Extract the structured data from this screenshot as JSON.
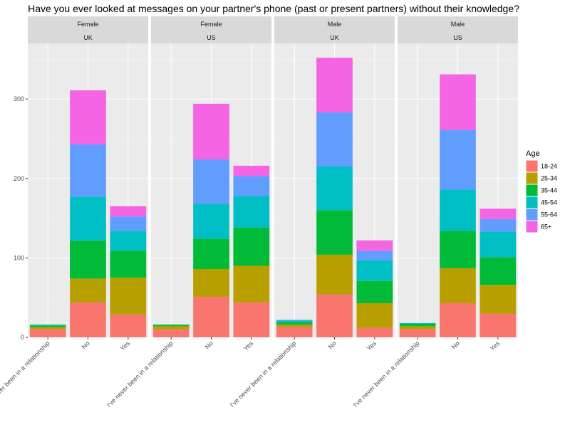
{
  "chart_data": {
    "type": "bar",
    "stacked": true,
    "title": "Have you ever looked at messages on your partner's phone (past or present partners) without their knowledge?",
    "xlabel": "",
    "ylabel": "",
    "ylim": [
      0,
      370
    ],
    "y_ticks": [
      0,
      100,
      200,
      300
    ],
    "categories": [
      "I've never been in a relationship",
      "No",
      "Yes"
    ],
    "legend": {
      "title": "Age",
      "position": "right",
      "entries": [
        "18-24",
        "25-34",
        "35-44",
        "45-54",
        "55-64",
        "65+"
      ],
      "colors": [
        "#F8766D",
        "#B79F00",
        "#00BA38",
        "#00BFC4",
        "#619CFF",
        "#F564E3"
      ]
    },
    "panels": [
      {
        "gender": "Female",
        "country": "UK",
        "series": [
          {
            "name": "18-24",
            "values": [
              10,
              44,
              29
            ]
          },
          {
            "name": "25-34",
            "values": [
              3,
              30,
              46
            ]
          },
          {
            "name": "35-44",
            "values": [
              2,
              48,
              34
            ]
          },
          {
            "name": "45-54",
            "values": [
              1,
              55,
              25
            ]
          },
          {
            "name": "55-64",
            "values": [
              0,
              66,
              18
            ]
          },
          {
            "name": "65+",
            "values": [
              0,
              68,
              13
            ]
          }
        ]
      },
      {
        "gender": "Female",
        "country": "US",
        "series": [
          {
            "name": "18-24",
            "values": [
              10,
              51,
              44
            ]
          },
          {
            "name": "25-34",
            "values": [
              4,
              35,
              46
            ]
          },
          {
            "name": "35-44",
            "values": [
              2,
              38,
              48
            ]
          },
          {
            "name": "45-54",
            "values": [
              0,
              44,
              40
            ]
          },
          {
            "name": "55-64",
            "values": [
              0,
              56,
              25
            ]
          },
          {
            "name": "65+",
            "values": [
              0,
              70,
              13
            ]
          }
        ]
      },
      {
        "gender": "Male",
        "country": "UK",
        "series": [
          {
            "name": "18-24",
            "values": [
              13,
              54,
              12
            ]
          },
          {
            "name": "25-34",
            "values": [
              3,
              50,
              31
            ]
          },
          {
            "name": "35-44",
            "values": [
              3,
              56,
              28
            ]
          },
          {
            "name": "45-54",
            "values": [
              2,
              55,
              26
            ]
          },
          {
            "name": "55-64",
            "values": [
              1,
              68,
              12
            ]
          },
          {
            "name": "65+",
            "values": [
              0,
              69,
              13
            ]
          }
        ]
      },
      {
        "gender": "Male",
        "country": "US",
        "series": [
          {
            "name": "18-24",
            "values": [
              10,
              43,
              30
            ]
          },
          {
            "name": "25-34",
            "values": [
              4,
              44,
              36
            ]
          },
          {
            "name": "35-44",
            "values": [
              3,
              47,
              35
            ]
          },
          {
            "name": "45-54",
            "values": [
              1,
              52,
              32
            ]
          },
          {
            "name": "55-64",
            "values": [
              0,
              75,
              16
            ]
          },
          {
            "name": "65+",
            "values": [
              0,
              70,
              13
            ]
          }
        ]
      }
    ]
  }
}
